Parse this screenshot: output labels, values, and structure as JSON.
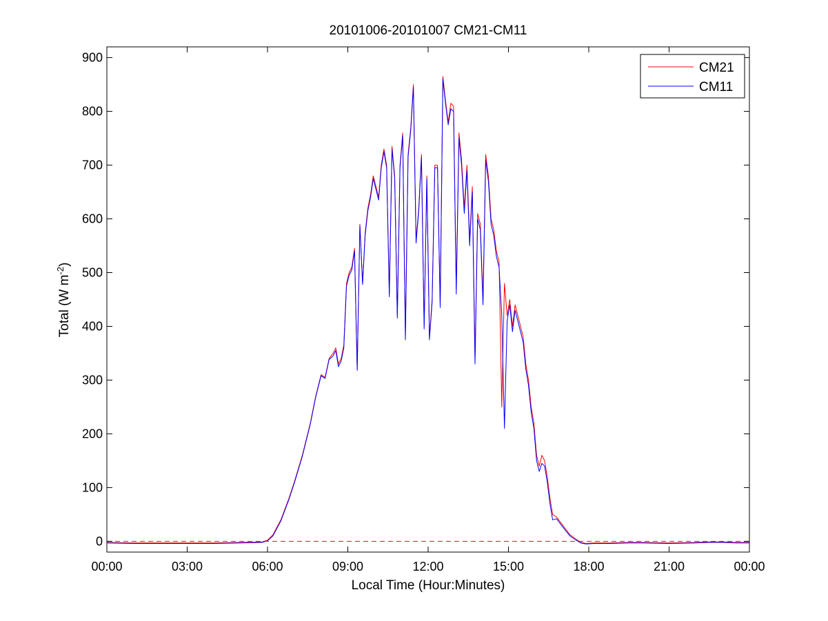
{
  "chart_data": {
    "type": "line",
    "title": "20101006-20101007 CM21-CM11",
    "xlabel": "Local Time (Hour:Minutes)",
    "ylabel_main": "Total (W m",
    "ylabel_sup": "-2",
    "ylabel_close": ")",
    "xlim": [
      0,
      24
    ],
    "ylim": [
      -20,
      920
    ],
    "x_unit": "hours",
    "xticks": [
      0,
      3,
      6,
      9,
      12,
      15,
      18,
      21,
      24
    ],
    "xtick_labels": [
      "00:00",
      "03:00",
      "06:00",
      "09:00",
      "12:00",
      "15:00",
      "18:00",
      "21:00",
      "00:00"
    ],
    "yticks": [
      0,
      100,
      200,
      300,
      400,
      500,
      600,
      700,
      800,
      900
    ],
    "ytick_labels": [
      "0",
      "100",
      "200",
      "300",
      "400",
      "500",
      "600",
      "700",
      "800",
      "900"
    ],
    "grid": false,
    "legend": "top-right",
    "reference_line": {
      "y": 0,
      "style": "dashed",
      "color": "#b22222"
    },
    "series": [
      {
        "name": "CM21",
        "color": "#ff0000",
        "points": [
          [
            0,
            -2
          ],
          [
            1,
            -3
          ],
          [
            2,
            -3
          ],
          [
            3,
            -3
          ],
          [
            4,
            -3
          ],
          [
            5,
            -2
          ],
          [
            5.8,
            -1
          ],
          [
            6,
            2
          ],
          [
            6.2,
            12
          ],
          [
            6.5,
            40
          ],
          [
            6.8,
            80
          ],
          [
            7,
            110
          ],
          [
            7.3,
            160
          ],
          [
            7.6,
            220
          ],
          [
            7.8,
            270
          ],
          [
            8,
            310
          ],
          [
            8.15,
            305
          ],
          [
            8.3,
            340
          ],
          [
            8.45,
            350
          ],
          [
            8.55,
            360
          ],
          [
            8.65,
            330
          ],
          [
            8.75,
            340
          ],
          [
            8.85,
            365
          ],
          [
            8.95,
            480
          ],
          [
            9.05,
            500
          ],
          [
            9.15,
            510
          ],
          [
            9.25,
            545
          ],
          [
            9.35,
            320
          ],
          [
            9.45,
            590
          ],
          [
            9.55,
            480
          ],
          [
            9.65,
            575
          ],
          [
            9.75,
            620
          ],
          [
            9.85,
            645
          ],
          [
            9.95,
            680
          ],
          [
            10.05,
            660
          ],
          [
            10.15,
            640
          ],
          [
            10.25,
            700
          ],
          [
            10.35,
            730
          ],
          [
            10.45,
            700
          ],
          [
            10.55,
            460
          ],
          [
            10.65,
            735
          ],
          [
            10.75,
            680
          ],
          [
            10.85,
            420
          ],
          [
            10.95,
            700
          ],
          [
            11.05,
            760
          ],
          [
            11.15,
            380
          ],
          [
            11.25,
            720
          ],
          [
            11.35,
            770
          ],
          [
            11.45,
            850
          ],
          [
            11.55,
            560
          ],
          [
            11.65,
            620
          ],
          [
            11.75,
            720
          ],
          [
            11.85,
            400
          ],
          [
            11.95,
            680
          ],
          [
            12.05,
            380
          ],
          [
            12.15,
            450
          ],
          [
            12.25,
            700
          ],
          [
            12.35,
            700
          ],
          [
            12.45,
            440
          ],
          [
            12.55,
            865
          ],
          [
            12.65,
            820
          ],
          [
            12.75,
            780
          ],
          [
            12.85,
            815
          ],
          [
            12.95,
            810
          ],
          [
            13.05,
            470
          ],
          [
            13.15,
            760
          ],
          [
            13.25,
            710
          ],
          [
            13.35,
            620
          ],
          [
            13.45,
            700
          ],
          [
            13.55,
            560
          ],
          [
            13.65,
            660
          ],
          [
            13.75,
            340
          ],
          [
            13.85,
            610
          ],
          [
            13.95,
            590
          ],
          [
            14.05,
            450
          ],
          [
            14.15,
            720
          ],
          [
            14.25,
            680
          ],
          [
            14.35,
            600
          ],
          [
            14.45,
            580
          ],
          [
            14.55,
            540
          ],
          [
            14.65,
            520
          ],
          [
            14.75,
            250
          ],
          [
            14.85,
            480
          ],
          [
            14.95,
            420
          ],
          [
            15.05,
            450
          ],
          [
            15.15,
            400
          ],
          [
            15.25,
            440
          ],
          [
            15.35,
            420
          ],
          [
            15.45,
            400
          ],
          [
            15.55,
            380
          ],
          [
            15.65,
            330
          ],
          [
            15.75,
            300
          ],
          [
            15.85,
            250
          ],
          [
            15.95,
            220
          ],
          [
            16.05,
            160
          ],
          [
            16.15,
            140
          ],
          [
            16.25,
            160
          ],
          [
            16.35,
            150
          ],
          [
            16.45,
            120
          ],
          [
            16.55,
            80
          ],
          [
            16.65,
            50
          ],
          [
            16.8,
            45
          ],
          [
            16.95,
            35
          ],
          [
            17.1,
            25
          ],
          [
            17.3,
            12
          ],
          [
            17.5,
            5
          ],
          [
            17.7,
            -2
          ],
          [
            17.9,
            -4
          ],
          [
            18.2,
            -3
          ],
          [
            18.8,
            -3
          ],
          [
            19.5,
            -2
          ],
          [
            20,
            -2
          ],
          [
            21,
            -3
          ],
          [
            22,
            -2
          ],
          [
            22.5,
            -1
          ],
          [
            23,
            -1
          ],
          [
            23.5,
            -2
          ],
          [
            24,
            -2
          ]
        ]
      },
      {
        "name": "CM11",
        "color": "#0000ff",
        "points": [
          [
            0,
            -3
          ],
          [
            1,
            -4
          ],
          [
            2,
            -4
          ],
          [
            3,
            -4
          ],
          [
            4,
            -4
          ],
          [
            5,
            -3
          ],
          [
            5.8,
            -2
          ],
          [
            6,
            1
          ],
          [
            6.2,
            10
          ],
          [
            6.5,
            38
          ],
          [
            6.8,
            78
          ],
          [
            7,
            108
          ],
          [
            7.3,
            158
          ],
          [
            7.6,
            218
          ],
          [
            7.8,
            268
          ],
          [
            8,
            308
          ],
          [
            8.15,
            303
          ],
          [
            8.3,
            338
          ],
          [
            8.45,
            345
          ],
          [
            8.55,
            355
          ],
          [
            8.65,
            325
          ],
          [
            8.75,
            335
          ],
          [
            8.85,
            360
          ],
          [
            8.95,
            475
          ],
          [
            9.05,
            495
          ],
          [
            9.15,
            505
          ],
          [
            9.25,
            540
          ],
          [
            9.35,
            318
          ],
          [
            9.45,
            588
          ],
          [
            9.55,
            478
          ],
          [
            9.65,
            570
          ],
          [
            9.75,
            615
          ],
          [
            9.85,
            640
          ],
          [
            9.95,
            675
          ],
          [
            10.05,
            655
          ],
          [
            10.15,
            635
          ],
          [
            10.25,
            695
          ],
          [
            10.35,
            725
          ],
          [
            10.45,
            695
          ],
          [
            10.55,
            455
          ],
          [
            10.65,
            730
          ],
          [
            10.75,
            675
          ],
          [
            10.85,
            415
          ],
          [
            10.95,
            695
          ],
          [
            11.05,
            755
          ],
          [
            11.15,
            375
          ],
          [
            11.25,
            715
          ],
          [
            11.35,
            765
          ],
          [
            11.45,
            845
          ],
          [
            11.55,
            555
          ],
          [
            11.65,
            615
          ],
          [
            11.75,
            715
          ],
          [
            11.85,
            395
          ],
          [
            11.95,
            675
          ],
          [
            12.05,
            375
          ],
          [
            12.15,
            445
          ],
          [
            12.25,
            695
          ],
          [
            12.35,
            695
          ],
          [
            12.45,
            435
          ],
          [
            12.55,
            860
          ],
          [
            12.65,
            815
          ],
          [
            12.75,
            775
          ],
          [
            12.85,
            805
          ],
          [
            12.95,
            800
          ],
          [
            13.05,
            460
          ],
          [
            13.15,
            750
          ],
          [
            13.25,
            700
          ],
          [
            13.35,
            610
          ],
          [
            13.45,
            690
          ],
          [
            13.55,
            550
          ],
          [
            13.65,
            650
          ],
          [
            13.75,
            330
          ],
          [
            13.85,
            600
          ],
          [
            13.95,
            580
          ],
          [
            14.05,
            440
          ],
          [
            14.15,
            710
          ],
          [
            14.25,
            670
          ],
          [
            14.35,
            590
          ],
          [
            14.45,
            570
          ],
          [
            14.55,
            530
          ],
          [
            14.65,
            510
          ],
          [
            14.75,
            420
          ],
          [
            14.85,
            210
          ],
          [
            14.95,
            410
          ],
          [
            15.05,
            440
          ],
          [
            15.15,
            390
          ],
          [
            15.25,
            430
          ],
          [
            15.35,
            410
          ],
          [
            15.45,
            390
          ],
          [
            15.55,
            370
          ],
          [
            15.65,
            320
          ],
          [
            15.75,
            290
          ],
          [
            15.85,
            240
          ],
          [
            15.95,
            210
          ],
          [
            16.05,
            150
          ],
          [
            16.15,
            130
          ],
          [
            16.25,
            145
          ],
          [
            16.35,
            140
          ],
          [
            16.45,
            110
          ],
          [
            16.55,
            70
          ],
          [
            16.65,
            40
          ],
          [
            16.8,
            42
          ],
          [
            16.95,
            32
          ],
          [
            17.1,
            22
          ],
          [
            17.3,
            10
          ],
          [
            17.5,
            3
          ],
          [
            17.7,
            -3
          ],
          [
            17.9,
            -5
          ],
          [
            18.2,
            -4
          ],
          [
            18.8,
            -4
          ],
          [
            19.5,
            -3
          ],
          [
            20,
            -3
          ],
          [
            21,
            -4
          ],
          [
            22,
            -3
          ],
          [
            22.5,
            -2
          ],
          [
            23,
            -2
          ],
          [
            23.5,
            -3
          ],
          [
            24,
            -3
          ]
        ]
      }
    ]
  }
}
